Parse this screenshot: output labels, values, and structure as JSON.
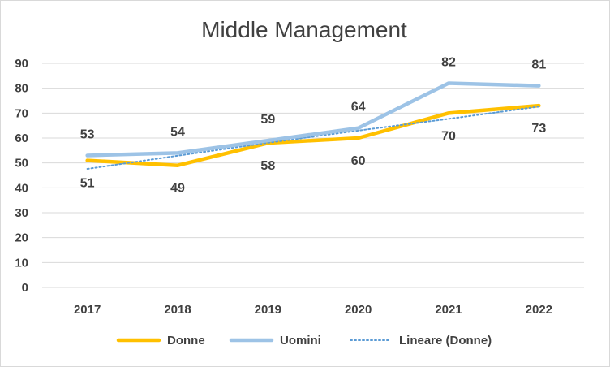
{
  "chart_data": {
    "type": "line",
    "title": "Middle Management",
    "categories": [
      "2017",
      "2018",
      "2019",
      "2020",
      "2021",
      "2022"
    ],
    "ylim": [
      0,
      90
    ],
    "yticks": [
      0,
      10,
      20,
      30,
      40,
      50,
      60,
      70,
      80,
      90
    ],
    "grid": true,
    "legend_position": "bottom",
    "series": [
      {
        "name": "Donne",
        "values": [
          51,
          49,
          58,
          60,
          70,
          73
        ],
        "color": "#ffc000",
        "style": "solid"
      },
      {
        "name": "Uomini",
        "values": [
          53,
          54,
          59,
          64,
          82,
          81
        ],
        "color": "#9dc3e6",
        "style": "solid"
      },
      {
        "name": "Lineare (Donne)",
        "values": [
          47.6,
          52.9,
          58.1,
          63.0,
          67.7,
          72.6
        ],
        "color": "#5b9bd5",
        "style": "dotted"
      }
    ],
    "data_labels": {
      "Donne": [
        "51",
        "49",
        "58",
        "60",
        "70",
        "73"
      ],
      "Uomini": [
        "53",
        "54",
        "59",
        "64",
        "82",
        "81"
      ]
    }
  }
}
